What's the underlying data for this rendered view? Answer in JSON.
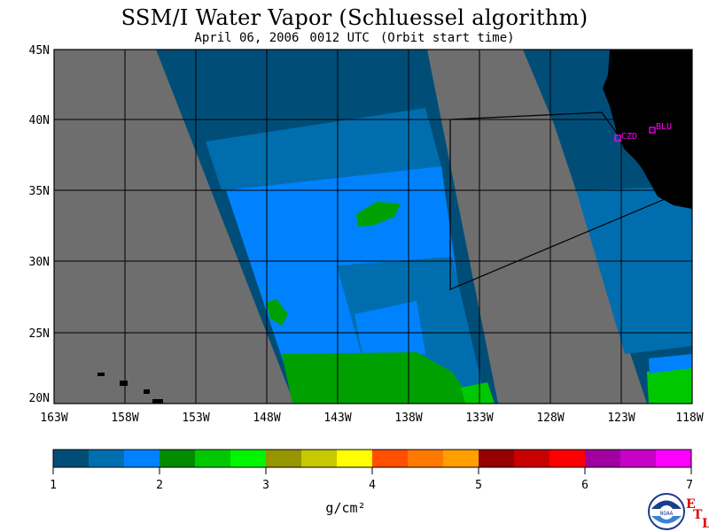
{
  "title": "SSM/I Water Vapor (Schluessel algorithm)",
  "subtitle": {
    "date": "April 06, 2006",
    "time": "0012 UTC",
    "note": "(Orbit start time)"
  },
  "map": {
    "lat_labels": [
      "45N",
      "40N",
      "35N",
      "30N",
      "25N",
      "20N"
    ],
    "lon_labels": [
      "163W",
      "158W",
      "153W",
      "148W",
      "143W",
      "138W",
      "133W",
      "128W",
      "123W",
      "118W"
    ],
    "stations": [
      {
        "id": "CZD"
      },
      {
        "id": "BLU"
      }
    ]
  },
  "colorbar": {
    "colors": [
      "#004e78",
      "#006eae",
      "#0082ff",
      "#008c00",
      "#00c800",
      "#00f500",
      "#969600",
      "#c8c800",
      "#ffff00",
      "#ff5000",
      "#ff7800",
      "#ffa000",
      "#960000",
      "#c80000",
      "#ff0000",
      "#a000a0",
      "#c800c8",
      "#ff00ff"
    ],
    "tick_labels": [
      "1",
      "2",
      "3",
      "4",
      "5",
      "6",
      "7"
    ],
    "unit": "g/cm²"
  },
  "logo": {
    "text": "NOAA",
    "etl_letters": [
      "E",
      "T",
      "L"
    ]
  },
  "colors": {
    "no_data": "#6e6e6e",
    "land": "#000000",
    "station": "#ff00ff"
  }
}
